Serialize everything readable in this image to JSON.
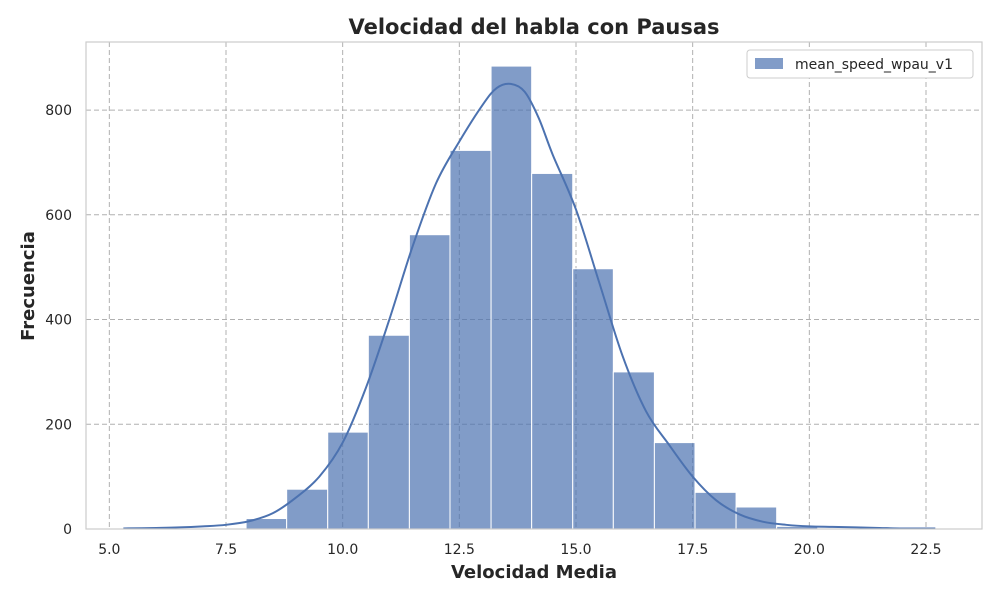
{
  "chart_data": {
    "type": "bar",
    "title": "Velocidad del habla con Pausas",
    "xlabel": "Velocidad Media",
    "ylabel": "Frecuencia",
    "xlim": [
      4.5,
      23.7
    ],
    "ylim": [
      0,
      930
    ],
    "xticks": [
      5.0,
      7.5,
      10.0,
      12.5,
      15.0,
      17.5,
      20.0,
      22.5
    ],
    "xtick_labels": [
      "5.0",
      "7.5",
      "10.0",
      "12.5",
      "15.0",
      "17.5",
      "20.0",
      "22.5"
    ],
    "yticks": [
      0,
      200,
      400,
      600,
      800
    ],
    "ytick_labels": [
      "0",
      "200",
      "400",
      "600",
      "800"
    ],
    "grid": true,
    "legend": {
      "position": "top-right",
      "entries": [
        "mean_speed_wpau_v1"
      ]
    },
    "series": [
      {
        "name": "mean_speed_wpau_v1",
        "color": "#4c72b0",
        "bin_edges": [
          5.3,
          6.17,
          7.05,
          7.93,
          8.8,
          9.68,
          10.55,
          11.43,
          12.3,
          13.18,
          14.05,
          14.93,
          15.8,
          16.68,
          17.55,
          18.43,
          19.3,
          20.18,
          21.05,
          21.93,
          22.8
        ],
        "counts": [
          1,
          0,
          0,
          20,
          76,
          185,
          370,
          562,
          723,
          884,
          679,
          497,
          300,
          165,
          70,
          42,
          5,
          0,
          0,
          1
        ],
        "kde": {
          "x": [
            5.3,
            6.0,
            6.5,
            7.0,
            7.5,
            8.0,
            8.5,
            9.0,
            9.5,
            10.0,
            10.5,
            11.0,
            11.5,
            12.0,
            12.5,
            13.0,
            13.3,
            13.6,
            13.9,
            14.2,
            14.5,
            15.0,
            15.5,
            16.0,
            16.5,
            17.0,
            17.5,
            18.0,
            18.5,
            19.0,
            19.5,
            20.0,
            20.5,
            21.0,
            21.5,
            22.0,
            22.7
          ],
          "y": [
            1,
            2,
            3,
            5,
            8,
            15,
            30,
            60,
            100,
            165,
            270,
            400,
            540,
            660,
            740,
            810,
            842,
            850,
            835,
            785,
            715,
            610,
            470,
            330,
            225,
            160,
            100,
            55,
            28,
            14,
            8,
            5,
            4,
            3,
            2,
            1,
            1
          ]
        }
      }
    ]
  }
}
